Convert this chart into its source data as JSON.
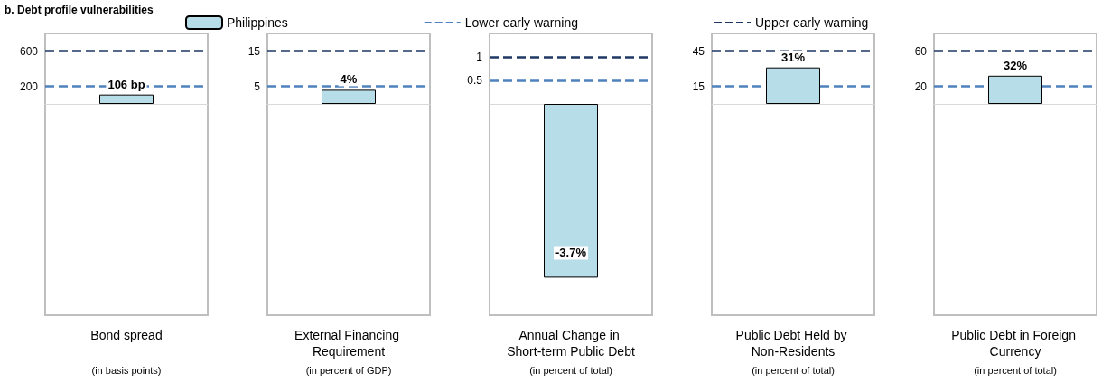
{
  "chart_data": [
    {
      "type": "bar",
      "title": "b. Debt profile vulnerabilities",
      "xlabel": "Bond spread",
      "annotations": [
        "(in basis points)"
      ],
      "categories": [
        null
      ],
      "legend": "top",
      "series": [
        {
          "name": "Philippines",
          "color": "#b7dde8",
          "values": [
            106
          ],
          "value_labels": [
            "106 bp"
          ]
        }
      ],
      "ylim": [
        -2400,
        800
      ],
      "yticks": [
        200,
        600
      ],
      "ref_lines": [
        {
          "axis": "y",
          "value": 200,
          "label": "Lower early warning",
          "color": "#4f81bd",
          "line_style": "dashed"
        },
        {
          "axis": "y",
          "value": 600,
          "label": "Upper early warning",
          "color": "#1f3864",
          "line_style": "dashed"
        }
      ]
    },
    {
      "type": "bar",
      "xlabel": "External Financing Requirement",
      "annotations": [
        "(in percent of GDP)"
      ],
      "categories": [
        null
      ],
      "color": "#b7dde8",
      "values": [
        4
      ],
      "value_labels": [
        "4%"
      ],
      "ylim": [
        -60,
        20
      ],
      "yticks": [
        5,
        15
      ],
      "ref_lines": [
        {
          "axis": "y",
          "value": 5,
          "color": "#4f81bd",
          "line_style": "dashed"
        },
        {
          "axis": "y",
          "value": 15,
          "color": "#1f3864",
          "line_style": "dashed"
        }
      ]
    },
    {
      "type": "bar",
      "xlabel": "Annual Change in Short-term Public Debt",
      "annotations": [
        "(in percent of total)"
      ],
      "categories": [
        null
      ],
      "color": "#b7dde8",
      "values": [
        -3.7
      ],
      "value_labels": [
        "-3.7%"
      ],
      "ylim": [
        -4.5,
        1.5
      ],
      "yticks": [
        0.5,
        1
      ],
      "ref_lines": [
        {
          "axis": "y",
          "value": 0.5,
          "color": "#4f81bd",
          "line_style": "dashed"
        },
        {
          "axis": "y",
          "value": 1,
          "color": "#1f3864",
          "line_style": "dashed"
        }
      ]
    },
    {
      "type": "bar",
      "xlabel": "Public Debt Held by Non-Residents",
      "annotations": [
        "(in percent of total)"
      ],
      "categories": [
        null
      ],
      "color": "#b7dde8",
      "values": [
        31
      ],
      "value_labels": [
        "31%"
      ],
      "ylim": [
        -180,
        60
      ],
      "yticks": [
        15,
        45
      ],
      "ref_lines": [
        {
          "axis": "y",
          "value": 15,
          "color": "#4f81bd",
          "line_style": "dashed"
        },
        {
          "axis": "y",
          "value": 45,
          "color": "#1f3864",
          "line_style": "dashed"
        }
      ]
    },
    {
      "type": "bar",
      "xlabel": "Public Debt in Foreign Currency",
      "annotations": [
        "(in percent of total)"
      ],
      "categories": [
        null
      ],
      "color": "#b7dde8",
      "values": [
        32
      ],
      "value_labels": [
        "32%"
      ],
      "ylim": [
        -240,
        80
      ],
      "yticks": [
        20,
        60
      ],
      "ref_lines": [
        {
          "axis": "y",
          "value": 20,
          "color": "#4f81bd",
          "line_style": "dashed"
        },
        {
          "axis": "y",
          "value": 60,
          "color": "#1f3864",
          "line_style": "dashed"
        }
      ]
    }
  ]
}
